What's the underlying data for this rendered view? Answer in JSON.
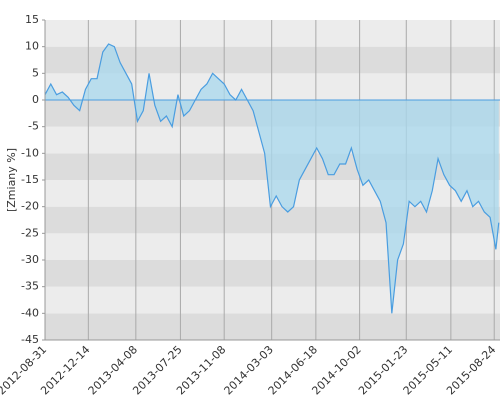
{
  "chart_data": {
    "type": "area",
    "y_label": "[Zmiany %]",
    "x": [
      "2012-08-31",
      "2012-09-14",
      "2012-09-28",
      "2012-10-12",
      "2012-10-26",
      "2012-11-09",
      "2012-11-23",
      "2012-12-07",
      "2012-12-21",
      "2013-01-04",
      "2013-01-18",
      "2013-02-01",
      "2013-02-15",
      "2013-03-01",
      "2013-03-15",
      "2013-03-29",
      "2013-04-12",
      "2013-04-26",
      "2013-05-10",
      "2013-05-24",
      "2013-06-07",
      "2013-06-21",
      "2013-07-05",
      "2013-07-19",
      "2013-08-02",
      "2013-08-16",
      "2013-08-30",
      "2013-09-13",
      "2013-09-27",
      "2013-10-11",
      "2013-10-25",
      "2013-11-08",
      "2013-11-22",
      "2013-12-06",
      "2013-12-20",
      "2014-01-03",
      "2014-01-17",
      "2014-01-31",
      "2014-02-14",
      "2014-02-28",
      "2014-03-14",
      "2014-03-28",
      "2014-04-11",
      "2014-04-25",
      "2014-05-09",
      "2014-05-23",
      "2014-06-06",
      "2014-06-20",
      "2014-07-04",
      "2014-07-18",
      "2014-08-01",
      "2014-08-15",
      "2014-08-29",
      "2014-09-12",
      "2014-09-26",
      "2014-10-10",
      "2014-10-24",
      "2014-11-07",
      "2014-11-21",
      "2014-12-05",
      "2014-12-19",
      "2015-01-02",
      "2015-01-16",
      "2015-01-30",
      "2015-02-13",
      "2015-02-27",
      "2015-03-13",
      "2015-03-27",
      "2015-04-10",
      "2015-04-24",
      "2015-05-08",
      "2015-05-22",
      "2015-06-05",
      "2015-06-19",
      "2015-07-03",
      "2015-07-17",
      "2015-07-31",
      "2015-08-14",
      "2015-08-28",
      "2015-09-04"
    ],
    "values": [
      1,
      3,
      1,
      1.5,
      0.5,
      -1,
      -2,
      2,
      4,
      4,
      9,
      10.5,
      10,
      7,
      5,
      3,
      -4,
      -2,
      5,
      -1,
      -4,
      -3,
      -5,
      1,
      -3,
      -2,
      0,
      2,
      3,
      5,
      4,
      3,
      1,
      0,
      2,
      0,
      -2,
      -6,
      -10,
      -20,
      -18,
      -20,
      -21,
      -20,
      -15,
      -13,
      -11,
      -9,
      -11,
      -14,
      -14,
      -12,
      -12,
      -9,
      -13,
      -16,
      -15,
      -17,
      -19,
      -23,
      -40,
      -30,
      -27,
      -19,
      -20,
      -19,
      -21,
      -17,
      -11,
      -14,
      -16,
      -17,
      -19,
      -17,
      -20,
      -19,
      -21,
      -22,
      -28,
      -23
    ],
    "color": "#4a9de0",
    "fill_color": "#a8d8ee",
    "band_colors": [
      "#dcdcdc",
      "#ececec"
    ],
    "xlim": [
      "2012-08-31",
      "2015-09-07"
    ],
    "xticks": [
      "2012-08-31",
      "2012-12-14",
      "2013-04-08",
      "2013-07-25",
      "2013-11-08",
      "2014-03-03",
      "2014-06-18",
      "2014-10-02",
      "2015-01-23",
      "2015-05-11",
      "2015-08-24"
    ],
    "ylim": [
      -45,
      15
    ],
    "yticks": [
      -45,
      -40,
      -35,
      -30,
      -25,
      -20,
      -15,
      -10,
      -5,
      0,
      5,
      10,
      15
    ],
    "grid": true
  }
}
